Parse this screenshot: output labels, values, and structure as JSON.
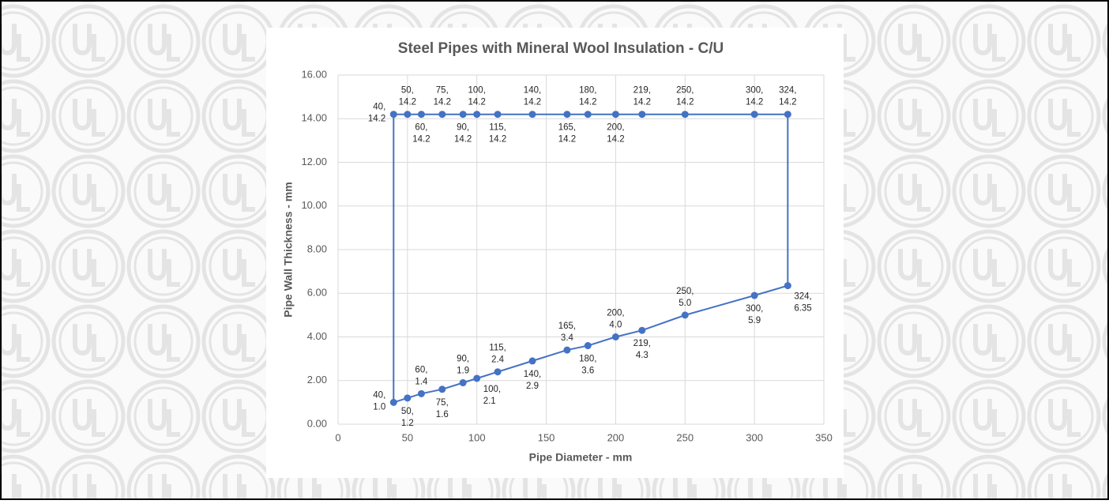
{
  "chart_data": {
    "type": "scatter",
    "title": "Steel Pipes with Mineral Wool Insulation - C/U",
    "x_label": "Pipe Diameter - mm",
    "y_label": "Pipe Wall Thickness - mm",
    "xlim": [
      0,
      350
    ],
    "xticks": [
      0,
      50,
      100,
      150,
      200,
      250,
      300,
      350
    ],
    "ylim": [
      0,
      16
    ],
    "yticks": [
      {
        "value": 0,
        "label": "0.00"
      },
      {
        "value": 2,
        "label": "2.00"
      },
      {
        "value": 4,
        "label": "4.00"
      },
      {
        "value": 6,
        "label": "6.00"
      },
      {
        "value": 8,
        "label": "8.00"
      },
      {
        "value": 10,
        "label": "10.00"
      },
      {
        "value": 12,
        "label": "12.00"
      },
      {
        "value": 14,
        "label": "14.00"
      },
      {
        "value": 16,
        "label": "16.00"
      }
    ],
    "grid": true,
    "closed": true,
    "series": [
      {
        "color": "#4472c4",
        "x": [
          40,
          50,
          60,
          75,
          90,
          100,
          115,
          140,
          165,
          180,
          200,
          219,
          250,
          300,
          324,
          324,
          300,
          250,
          219,
          200,
          180,
          165,
          140,
          115,
          100,
          90,
          75,
          60,
          50,
          40
        ],
        "values": [
          1.0,
          1.2,
          1.4,
          1.6,
          1.9,
          2.1,
          2.4,
          2.9,
          3.4,
          3.6,
          4.0,
          4.3,
          5.0,
          5.9,
          6.35,
          14.2,
          14.2,
          14.2,
          14.2,
          14.2,
          14.2,
          14.2,
          14.2,
          14.2,
          14.2,
          14.2,
          14.2,
          14.2,
          14.2,
          14.2
        ],
        "value_labels": [
          "40, 1.0",
          "50, 1.2",
          "60, 1.4",
          "75, 1.6",
          "90, 1.9",
          "100, 2.1",
          "115, 2.4",
          "140, 2.9",
          "165, 3.4",
          "180, 3.6",
          "200, 4.0",
          "219, 4.3",
          "250, 5.0",
          "300, 5.9",
          "324, 6.35",
          "324, 14.2",
          "300, 14.2",
          "250, 14.2",
          "219, 14.2",
          "200, 14.2",
          "180, 14.2",
          "165, 14.2",
          "140, 14.2",
          "115, 14.2",
          "100, 14.2",
          "90, 14.2",
          "75, 14.2",
          "60, 14.2",
          "50, 14.2",
          "40, 14.2"
        ]
      }
    ]
  }
}
